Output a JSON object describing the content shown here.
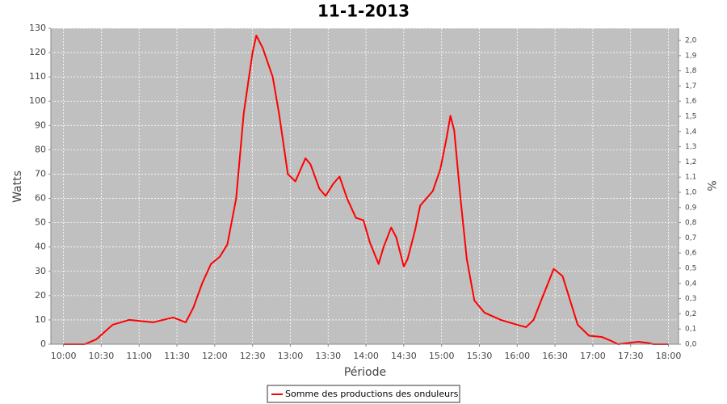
{
  "chart_data": {
    "type": "line",
    "title": "11-1-2013",
    "xlabel": "Période",
    "ylabel": "Watts",
    "y2label": "%",
    "x": [
      "10:00",
      "10:17",
      "10:26",
      "10:39",
      "10:52",
      "11:11",
      "11:27",
      "11:37",
      "11:43",
      "11:50",
      "11:57",
      "12:04",
      "12:10",
      "12:17",
      "12:23",
      "12:30",
      "12:33",
      "12:38",
      "12:46",
      "12:51",
      "12:58",
      "13:04",
      "13:12",
      "13:16",
      "13:23",
      "13:28",
      "13:34",
      "13:39",
      "13:45",
      "13:52",
      "13:58",
      "14:03",
      "14:10",
      "14:14",
      "14:20",
      "14:24",
      "14:30",
      "14:33",
      "14:39",
      "14:43",
      "14:53",
      "14:59",
      "15:04",
      "15:07",
      "15:10",
      "15:15",
      "15:20",
      "15:26",
      "15:34",
      "15:47",
      "16:00",
      "16:07",
      "16:13",
      "16:19",
      "16:29",
      "16:36",
      "16:42",
      "16:48",
      "16:57",
      "17:07",
      "17:14",
      "17:20",
      "17:36",
      "17:44",
      "17:48",
      "18:00"
    ],
    "series": [
      {
        "name": "Somme des productions des onduleurs",
        "color": "#ff0000",
        "values": [
          0,
          0,
          2,
          8,
          10,
          9,
          11,
          9,
          15,
          25,
          33,
          36,
          41,
          60,
          95,
          120,
          127,
          122,
          110,
          95,
          70,
          67,
          76.5,
          74,
          64,
          61,
          66,
          69,
          60,
          52,
          51,
          42,
          33,
          40,
          48,
          44,
          32,
          35,
          47,
          57,
          63,
          72,
          85,
          94,
          88,
          60,
          35,
          18,
          13,
          10,
          8,
          7,
          10,
          18,
          31,
          28,
          18,
          8,
          3.5,
          3,
          1.5,
          0,
          1,
          0.5,
          0,
          0
        ]
      }
    ],
    "xlim": [
      "09:50",
      "18:08"
    ],
    "xticks": [
      "10:00",
      "10:30",
      "11:00",
      "11:30",
      "12:00",
      "12:30",
      "13:00",
      "13:30",
      "14:00",
      "14:30",
      "15:00",
      "15:30",
      "16:00",
      "16:30",
      "17:00",
      "17:30",
      "18:00"
    ],
    "ylim": [
      0,
      130
    ],
    "yticks": [
      0,
      10,
      20,
      30,
      40,
      50,
      60,
      70,
      80,
      90,
      100,
      110,
      120,
      130
    ],
    "y2lim": [
      0,
      2.08
    ],
    "y2ticks": [
      {
        "value": 0,
        "label": "0,0"
      },
      {
        "value": 0.1,
        "label": "0,1"
      },
      {
        "value": 0.2,
        "label": "0,2"
      },
      {
        "value": 0.3,
        "label": "0,3"
      },
      {
        "value": 0.4,
        "label": "0,4"
      },
      {
        "value": 0.5,
        "label": "0,5"
      },
      {
        "value": 0.6,
        "label": "0,6"
      },
      {
        "value": 0.7,
        "label": "0,7"
      },
      {
        "value": 0.8,
        "label": "0,8"
      },
      {
        "value": 0.9,
        "label": "0,9"
      },
      {
        "value": 1.0,
        "label": "1,0"
      },
      {
        "value": 1.1,
        "label": "1,1"
      },
      {
        "value": 1.2,
        "label": "1,2"
      },
      {
        "value": 1.3,
        "label": "1,3"
      },
      {
        "value": 1.4,
        "label": "1,4"
      },
      {
        "value": 1.5,
        "label": "1,5"
      },
      {
        "value": 1.6,
        "label": "1,6"
      },
      {
        "value": 1.7,
        "label": "1,7"
      },
      {
        "value": 1.8,
        "label": "1,8"
      },
      {
        "value": 1.9,
        "label": "1,9"
      },
      {
        "value": 2.0,
        "label": "2,0"
      }
    ],
    "grid": true,
    "legend": "bottom"
  }
}
